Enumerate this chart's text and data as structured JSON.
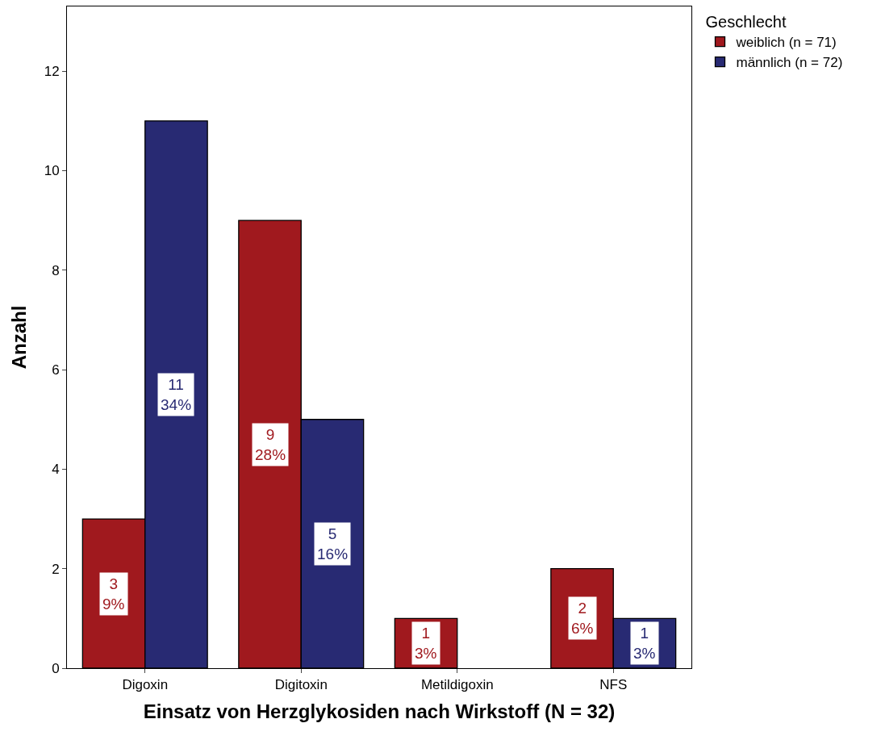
{
  "chart_data": {
    "type": "bar",
    "xlabel": "Einsatz von Herzglykosiden nach Wirkstoff (N = 32)",
    "ylabel": "Anzahl",
    "legend_title": "Geschlecht",
    "legend": "top right",
    "categories": [
      "Digoxin",
      "Digitoxin",
      "Metildigoxin",
      "NFS"
    ],
    "ylim": [
      0,
      13.3
    ],
    "yticks": [
      0,
      2,
      4,
      6,
      8,
      10,
      12
    ],
    "series": [
      {
        "name": "weiblich (n = 71)",
        "color": "#a0191e",
        "values": [
          3,
          9,
          1,
          2
        ],
        "value_labels": [
          "3\n9%",
          "9\n28%",
          "1\n3%",
          "2\n6%"
        ]
      },
      {
        "name": "männlich (n = 72)",
        "color": "#282a73",
        "values": [
          11,
          5,
          0,
          1
        ],
        "value_labels": [
          "11\n34%",
          "5\n16%",
          null,
          "1\n3%"
        ]
      }
    ]
  }
}
